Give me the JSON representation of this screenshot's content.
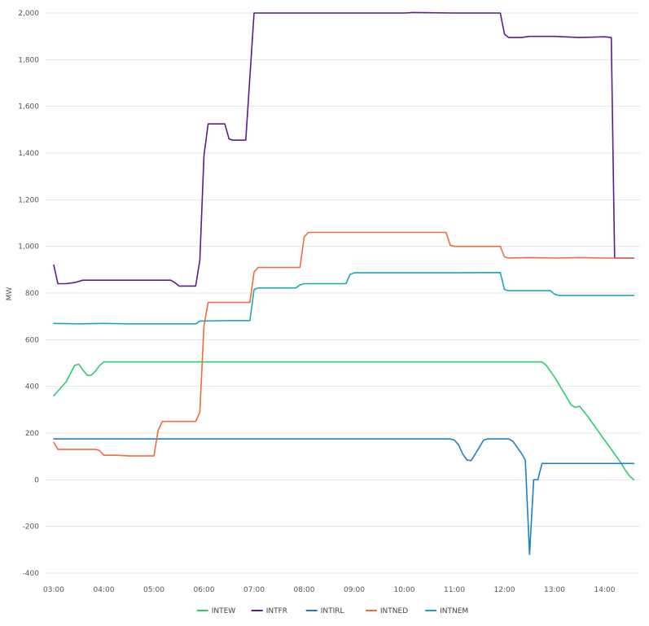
{
  "chart_data": {
    "type": "line",
    "title": "",
    "xlabel": "",
    "ylabel": "MW",
    "ylim": [
      -400,
      2000
    ],
    "xlim": [
      "03:00",
      "14:35"
    ],
    "y_ticks": [
      "2,000",
      "1,800",
      "1,600",
      "1,400",
      "1,200",
      "1,000",
      "800",
      "600",
      "400",
      "200",
      "0",
      "-200",
      "-400"
    ],
    "y_tick_values": [
      2000,
      1800,
      1600,
      1400,
      1200,
      1000,
      800,
      600,
      400,
      200,
      0,
      -200,
      -400
    ],
    "x_ticks": [
      "03:00",
      "04:00",
      "05:00",
      "06:00",
      "07:00",
      "08:00",
      "09:00",
      "10:00",
      "11:00",
      "12:00",
      "13:00",
      "14:00"
    ],
    "grid": true,
    "legend_position": "bottom",
    "series": [
      {
        "name": "INTEW",
        "color": "#2ecc71",
        "points": [
          [
            "03:00",
            360
          ],
          [
            "03:15",
            420
          ],
          [
            "03:25",
            490
          ],
          [
            "03:30",
            495
          ],
          [
            "03:35",
            470
          ],
          [
            "03:40",
            448
          ],
          [
            "03:45",
            448
          ],
          [
            "03:50",
            465
          ],
          [
            "03:55",
            490
          ],
          [
            "04:00",
            505
          ],
          [
            "04:30",
            505
          ],
          [
            "05:00",
            505
          ],
          [
            "06:00",
            505
          ],
          [
            "07:00",
            505
          ],
          [
            "08:00",
            505
          ],
          [
            "09:00",
            505
          ],
          [
            "10:00",
            505
          ],
          [
            "11:00",
            505
          ],
          [
            "12:00",
            505
          ],
          [
            "12:45",
            505
          ],
          [
            "12:50",
            490
          ],
          [
            "13:00",
            440
          ],
          [
            "13:10",
            380
          ],
          [
            "13:20",
            320
          ],
          [
            "13:25",
            310
          ],
          [
            "13:30",
            315
          ],
          [
            "13:40",
            270
          ],
          [
            "13:50",
            220
          ],
          [
            "14:00",
            170
          ],
          [
            "14:10",
            120
          ],
          [
            "14:20",
            70
          ],
          [
            "14:25",
            40
          ],
          [
            "14:30",
            15
          ],
          [
            "14:35",
            0
          ]
        ]
      },
      {
        "name": "INTFR",
        "color": "#5b1c8c",
        "points": [
          [
            "03:00",
            920
          ],
          [
            "03:05",
            840
          ],
          [
            "03:15",
            840
          ],
          [
            "03:25",
            845
          ],
          [
            "03:35",
            855
          ],
          [
            "04:00",
            855
          ],
          [
            "05:00",
            855
          ],
          [
            "05:20",
            855
          ],
          [
            "05:25",
            845
          ],
          [
            "05:30",
            830
          ],
          [
            "05:50",
            830
          ],
          [
            "05:55",
            940
          ],
          [
            "06:00",
            1390
          ],
          [
            "06:05",
            1525
          ],
          [
            "06:25",
            1525
          ],
          [
            "06:30",
            1460
          ],
          [
            "06:35",
            1455
          ],
          [
            "06:50",
            1455
          ],
          [
            "07:00",
            2000
          ],
          [
            "08:00",
            2000
          ],
          [
            "09:00",
            2000
          ],
          [
            "10:00",
            2000
          ],
          [
            "10:10",
            2002
          ],
          [
            "11:00",
            2000
          ],
          [
            "11:55",
            2000
          ],
          [
            "12:00",
            1910
          ],
          [
            "12:05",
            1895
          ],
          [
            "12:20",
            1895
          ],
          [
            "12:30",
            1900
          ],
          [
            "13:00",
            1900
          ],
          [
            "13:30",
            1895
          ],
          [
            "14:00",
            1898
          ],
          [
            "14:08",
            1895
          ],
          [
            "14:10",
            1400
          ],
          [
            "14:12",
            950
          ],
          [
            "14:35",
            950
          ]
        ]
      },
      {
        "name": "INTIRL",
        "color": "#1f7fc6",
        "points": [
          [
            "03:00",
            175
          ],
          [
            "04:00",
            175
          ],
          [
            "05:00",
            175
          ],
          [
            "06:00",
            175
          ],
          [
            "07:00",
            175
          ],
          [
            "08:00",
            175
          ],
          [
            "09:00",
            175
          ],
          [
            "10:00",
            175
          ],
          [
            "10:55",
            175
          ],
          [
            "11:00",
            170
          ],
          [
            "11:05",
            150
          ],
          [
            "11:10",
            110
          ],
          [
            "11:15",
            85
          ],
          [
            "11:20",
            82
          ],
          [
            "11:25",
            110
          ],
          [
            "11:30",
            140
          ],
          [
            "11:35",
            170
          ],
          [
            "11:40",
            175
          ],
          [
            "12:05",
            175
          ],
          [
            "12:10",
            165
          ],
          [
            "12:15",
            140
          ],
          [
            "12:20",
            115
          ],
          [
            "12:25",
            85
          ],
          [
            "12:30",
            -320
          ],
          [
            "12:35",
            0
          ],
          [
            "12:40",
            0
          ],
          [
            "12:45",
            70
          ],
          [
            "13:00",
            70
          ],
          [
            "14:00",
            70
          ],
          [
            "14:35",
            70
          ]
        ]
      },
      {
        "name": "INTNED",
        "color": "#f26b3a",
        "points": [
          [
            "03:00",
            160
          ],
          [
            "03:05",
            130
          ],
          [
            "03:30",
            130
          ],
          [
            "03:50",
            130
          ],
          [
            "03:55",
            125
          ],
          [
            "04:00",
            105
          ],
          [
            "04:15",
            105
          ],
          [
            "04:30",
            102
          ],
          [
            "05:00",
            102
          ],
          [
            "05:05",
            210
          ],
          [
            "05:10",
            250
          ],
          [
            "05:50",
            250
          ],
          [
            "05:55",
            290
          ],
          [
            "06:00",
            660
          ],
          [
            "06:05",
            760
          ],
          [
            "06:55",
            760
          ],
          [
            "07:00",
            890
          ],
          [
            "07:05",
            910
          ],
          [
            "07:55",
            910
          ],
          [
            "08:00",
            1040
          ],
          [
            "08:05",
            1060
          ],
          [
            "09:00",
            1060
          ],
          [
            "10:00",
            1060
          ],
          [
            "10:50",
            1060
          ],
          [
            "10:55",
            1005
          ],
          [
            "11:00",
            1000
          ],
          [
            "11:55",
            1000
          ],
          [
            "12:00",
            955
          ],
          [
            "12:05",
            950
          ],
          [
            "12:30",
            952
          ],
          [
            "13:00",
            950
          ],
          [
            "13:30",
            952
          ],
          [
            "14:00",
            950
          ],
          [
            "14:35",
            950
          ]
        ]
      },
      {
        "name": "INTNEM",
        "color": "#1aa8b4",
        "points": [
          [
            "03:00",
            670
          ],
          [
            "03:30",
            668
          ],
          [
            "04:00",
            670
          ],
          [
            "04:30",
            668
          ],
          [
            "05:00",
            668
          ],
          [
            "05:30",
            668
          ],
          [
            "05:50",
            668
          ],
          [
            "05:55",
            680
          ],
          [
            "06:30",
            682
          ],
          [
            "06:55",
            682
          ],
          [
            "07:00",
            815
          ],
          [
            "07:05",
            822
          ],
          [
            "07:50",
            822
          ],
          [
            "07:55",
            835
          ],
          [
            "08:00",
            840
          ],
          [
            "08:50",
            840
          ],
          [
            "08:55",
            880
          ],
          [
            "09:00",
            887
          ],
          [
            "10:00",
            887
          ],
          [
            "11:00",
            887
          ],
          [
            "11:55",
            888
          ],
          [
            "12:00",
            815
          ],
          [
            "12:05",
            810
          ],
          [
            "12:55",
            810
          ],
          [
            "13:00",
            795
          ],
          [
            "13:05",
            790
          ],
          [
            "14:00",
            790
          ],
          [
            "14:35",
            790
          ]
        ]
      }
    ]
  }
}
